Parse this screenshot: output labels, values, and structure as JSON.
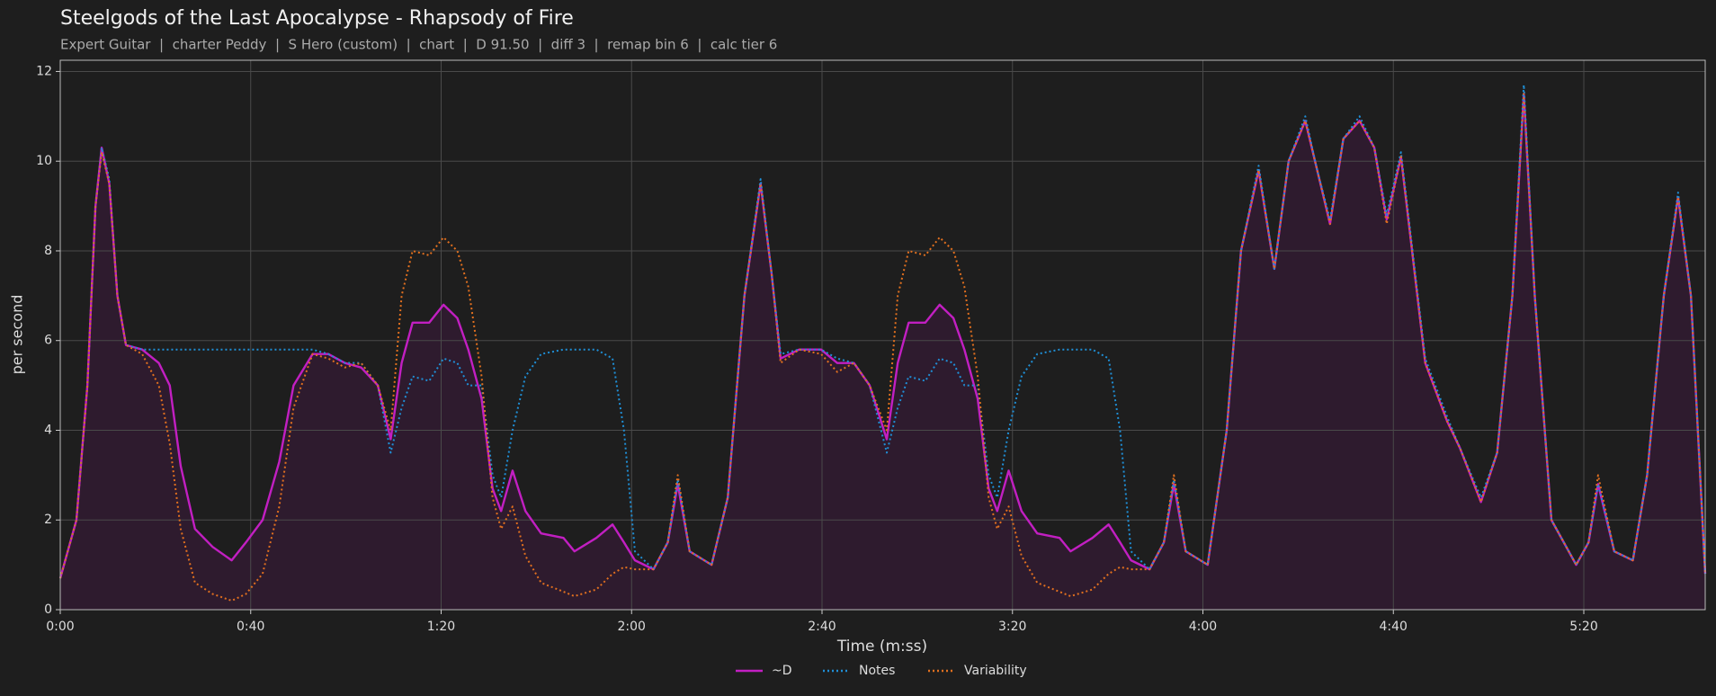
{
  "chart_data": {
    "type": "line",
    "title": "Steelgods of the Last Apocalypse - Rhapsody of Fire",
    "subtitle": "Expert Guitar  |  charter Peddy  |  S Hero (custom)  |  chart  |  D 91.50  |  diff 3  |  remap bin 6  |  calc tier 6",
    "xlabel": "Time (m:ss)",
    "ylabel": "per second",
    "x": [
      0,
      3.4,
      5.7,
      7.4,
      8.7,
      10.3,
      12,
      13.8,
      17.2,
      20.7,
      23,
      25.3,
      28.3,
      32,
      36,
      39,
      42.5,
      46,
      49,
      53,
      56.3,
      59.8,
      63.2,
      66.7,
      69.4,
      71.7,
      74,
      77.5,
      80.5,
      83.4,
      85.7,
      88.5,
      90.8,
      92.6,
      95,
      97.7,
      101,
      105.7,
      108,
      112.6,
      116,
      118.4,
      120.7,
      124.6,
      127.6,
      129.7,
      132.2,
      136.8,
      140.2,
      143.7,
      147.1,
      149.4,
      151.3,
      155.2,
      159.8,
      163.2,
      166.7,
      170,
      173.6,
      175.9,
      178.2,
      181.7,
      184.7,
      187.6,
      189.9,
      192.7,
      195,
      196.8,
      199.2,
      201.9,
      205.2,
      209.9,
      212.2,
      216.8,
      220.2,
      222.6,
      224.9,
      228.8,
      231.8,
      233.9,
      236.4,
      241,
      245,
      248,
      251.7,
      255,
      258,
      261.5,
      264,
      266.7,
      269.5,
      272.9,
      276,
      278.6,
      281.6,
      286.7,
      291.3,
      294,
      298.4,
      301.8,
      305,
      307.4,
      309.7,
      313.2,
      318.4,
      321,
      323,
      326.4,
      330.3,
      333.3,
      336.8,
      339.8,
      342.5,
      345.5
    ],
    "series": [
      {
        "name": "~D",
        "color": "#c21fc2",
        "fill": "#2e1b2e",
        "dash": false,
        "values": [
          0.7,
          2,
          5,
          9,
          10.3,
          9.5,
          7,
          5.9,
          5.8,
          5.5,
          5.0,
          3.2,
          1.8,
          1.4,
          1.1,
          1.5,
          2.0,
          3.3,
          5.0,
          5.7,
          5.7,
          5.5,
          5.4,
          5.0,
          3.8,
          5.5,
          6.4,
          6.4,
          6.8,
          6.5,
          5.8,
          4.7,
          2.7,
          2.2,
          3.1,
          2.2,
          1.7,
          1.6,
          1.3,
          1.6,
          1.9,
          1.5,
          1.1,
          0.9,
          1.5,
          2.8,
          1.3,
          1.0,
          2.5,
          7,
          9.5,
          7.5,
          5.6,
          5.8,
          5.8,
          5.5,
          5.5,
          5.0,
          3.8,
          5.5,
          6.4,
          6.4,
          6.8,
          6.5,
          5.8,
          4.7,
          2.7,
          2.2,
          3.1,
          2.2,
          1.7,
          1.6,
          1.3,
          1.6,
          1.9,
          1.5,
          1.1,
          0.9,
          1.5,
          2.8,
          1.3,
          1.0,
          4,
          8,
          9.8,
          7.6,
          10.0,
          10.9,
          9.8,
          8.6,
          10.5,
          10.9,
          10.3,
          8.7,
          10.1,
          5.5,
          4.2,
          3.6,
          2.4,
          3.5,
          7,
          11.5,
          7,
          2,
          1.0,
          1.5,
          2.8,
          1.3,
          1.1,
          3,
          7,
          9.2,
          7,
          0.8
        ]
      },
      {
        "name": "Notes",
        "color": "#1f8fd6",
        "dash": true,
        "values": [
          0.7,
          2,
          5,
          9,
          10.3,
          9.6,
          7,
          5.9,
          5.8,
          5.8,
          5.8,
          5.8,
          5.8,
          5.8,
          5.8,
          5.8,
          5.8,
          5.8,
          5.8,
          5.8,
          5.7,
          5.5,
          5.5,
          5.0,
          3.5,
          4.5,
          5.2,
          5.1,
          5.6,
          5.5,
          5.0,
          5.0,
          3.0,
          2.5,
          4.0,
          5.2,
          5.7,
          5.8,
          5.8,
          5.8,
          5.6,
          4.0,
          1.3,
          0.9,
          1.5,
          2.9,
          1.3,
          1.0,
          2.5,
          7,
          9.6,
          7.5,
          5.7,
          5.8,
          5.8,
          5.6,
          5.5,
          5.0,
          3.5,
          4.5,
          5.2,
          5.1,
          5.6,
          5.5,
          5.0,
          5.0,
          3.0,
          2.5,
          4.0,
          5.2,
          5.7,
          5.8,
          5.8,
          5.8,
          5.6,
          4.0,
          1.3,
          0.9,
          1.5,
          2.9,
          1.3,
          1.0,
          4,
          8,
          9.9,
          7.6,
          10.0,
          11.0,
          9.8,
          8.7,
          10.5,
          11.0,
          10.3,
          8.8,
          10.2,
          5.6,
          4.3,
          3.6,
          2.5,
          3.5,
          7,
          11.7,
          7,
          2,
          1.0,
          1.5,
          2.8,
          1.3,
          1.1,
          3,
          7,
          9.3,
          7,
          0.8
        ]
      },
      {
        "name": "Variability",
        "color": "#e2701f",
        "dash": true,
        "values": [
          0.7,
          2,
          5,
          9,
          10.2,
          9.5,
          7,
          5.9,
          5.7,
          5.0,
          3.7,
          1.8,
          0.6,
          0.35,
          0.2,
          0.35,
          0.8,
          2.3,
          4.5,
          5.7,
          5.6,
          5.4,
          5.5,
          5.0,
          4.0,
          7.0,
          8.0,
          7.9,
          8.3,
          8.0,
          7.2,
          5.2,
          2.5,
          1.8,
          2.3,
          1.2,
          0.6,
          0.4,
          0.3,
          0.45,
          0.8,
          0.95,
          0.9,
          0.9,
          1.5,
          3.0,
          1.3,
          1.0,
          2.5,
          7,
          9.5,
          7.5,
          5.5,
          5.8,
          5.7,
          5.3,
          5.5,
          5.0,
          4.0,
          7.0,
          8.0,
          7.9,
          8.3,
          8.0,
          7.2,
          5.2,
          2.5,
          1.8,
          2.3,
          1.2,
          0.6,
          0.4,
          0.3,
          0.45,
          0.8,
          0.95,
          0.9,
          0.9,
          1.5,
          3.0,
          1.3,
          1.0,
          4,
          8,
          9.8,
          7.6,
          10.0,
          10.9,
          9.8,
          8.6,
          10.5,
          10.9,
          10.3,
          8.6,
          10.1,
          5.5,
          4.2,
          3.6,
          2.4,
          3.5,
          7,
          11.5,
          7,
          2,
          1.0,
          1.5,
          3.0,
          1.3,
          1.1,
          3,
          7,
          9.2,
          7,
          0.8
        ]
      }
    ],
    "xlim": [
      0,
      345.5
    ],
    "ylim": [
      0,
      12.25
    ],
    "xticks": [
      {
        "value": 0,
        "label": "0:00"
      },
      {
        "value": 40,
        "label": "0:40"
      },
      {
        "value": 80,
        "label": "1:20"
      },
      {
        "value": 120,
        "label": "2:00"
      },
      {
        "value": 160,
        "label": "2:40"
      },
      {
        "value": 200,
        "label": "3:20"
      },
      {
        "value": 240,
        "label": "4:00"
      },
      {
        "value": 280,
        "label": "4:40"
      },
      {
        "value": 320,
        "label": "5:20"
      }
    ],
    "yticks": [
      0,
      2,
      4,
      6,
      8,
      10,
      12
    ],
    "grid": true,
    "legend": "bottom"
  }
}
